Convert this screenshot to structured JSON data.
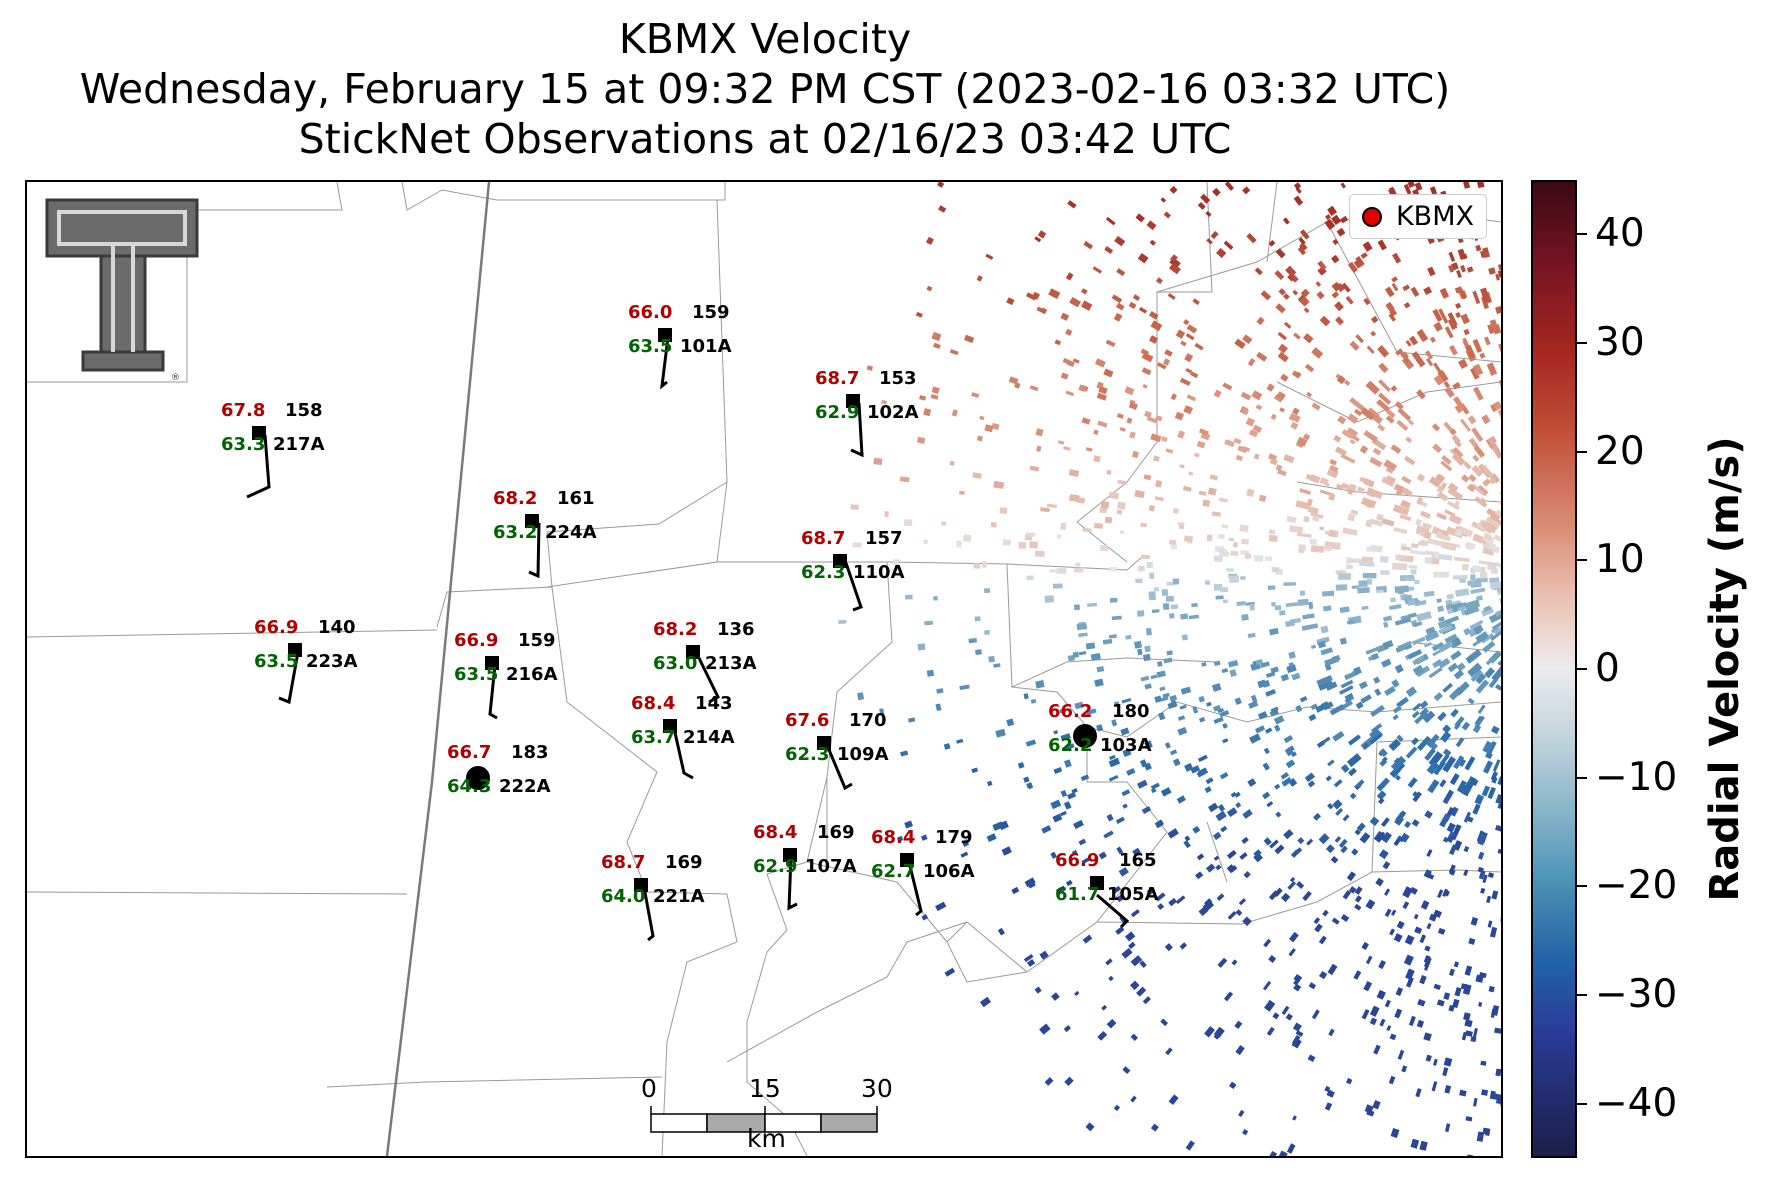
{
  "title": {
    "line1": "KBMX Velocity",
    "line2": "Wednesday, February 15 at 09:32 PM CST (2023-02-16 03:32 UTC)",
    "line3": "StickNet Observations at 02/16/23 03:42 UTC"
  },
  "legend": {
    "label": "KBMX"
  },
  "scale_bar": {
    "ticks": [
      "0",
      "15",
      "30"
    ],
    "unit": "km"
  },
  "colorbar": {
    "label": "Radial Velocity (m/s)",
    "ticks": [
      "40",
      "30",
      "20",
      "10",
      "0",
      "−10",
      "−20",
      "−30",
      "−40"
    ],
    "range": [
      -45,
      45
    ]
  },
  "colors": {
    "temperature": "#b00000",
    "dewpoint": "#006400",
    "station": "#000000"
  },
  "stations": [
    {
      "id": "101A",
      "temp": "66.0",
      "dew": "63.5",
      "wind": "159"
    },
    {
      "id": "102A",
      "temp": "68.7",
      "dew": "62.9",
      "wind": "153"
    },
    {
      "id": "217A",
      "temp": "67.8",
      "dew": "63.3",
      "wind": "158"
    },
    {
      "id": "224A",
      "temp": "68.2",
      "dew": "63.2",
      "wind": "161"
    },
    {
      "id": "110A",
      "temp": "68.7",
      "dew": "62.3",
      "wind": "157"
    },
    {
      "id": "223A",
      "temp": "66.9",
      "dew": "63.5",
      "wind": "140"
    },
    {
      "id": "216A",
      "temp": "66.9",
      "dew": "63.5",
      "wind": "159"
    },
    {
      "id": "213A",
      "temp": "68.2",
      "dew": "63.0",
      "wind": "136"
    },
    {
      "id": "214A",
      "temp": "68.4",
      "dew": "63.7",
      "wind": "143"
    },
    {
      "id": "109A",
      "temp": "67.6",
      "dew": "62.3",
      "wind": "170"
    },
    {
      "id": "103A",
      "temp": "66.2",
      "dew": "62.2",
      "wind": "180"
    },
    {
      "id": "222A",
      "temp": "66.7",
      "dew": "64.3",
      "wind": "183"
    },
    {
      "id": "107A",
      "temp": "68.4",
      "dew": "62.9",
      "wind": "169"
    },
    {
      "id": "106A",
      "temp": "68.4",
      "dew": "62.7",
      "wind": "179"
    },
    {
      "id": "221A",
      "temp": "68.7",
      "dew": "64.0",
      "wind": "169"
    },
    {
      "id": "105A",
      "temp": "66.9",
      "dew": "61.7",
      "wind": "165"
    }
  ]
}
